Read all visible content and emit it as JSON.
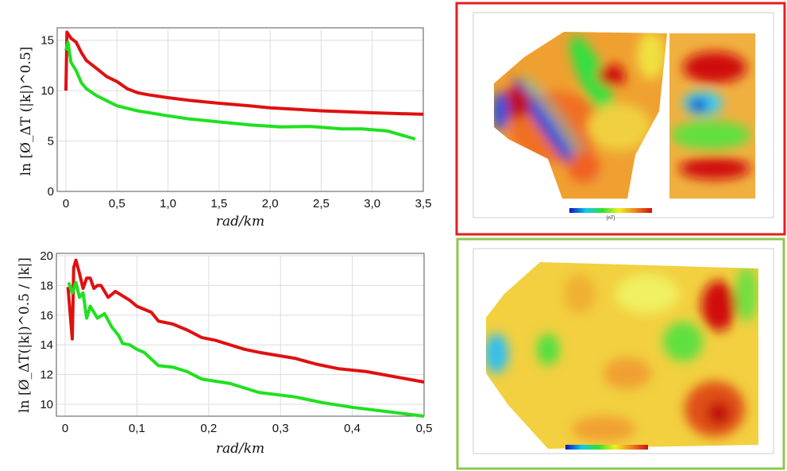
{
  "colors": {
    "series_red": "#e01010",
    "series_green": "#20e020",
    "panel_top_border": "#e02020",
    "panel_bottom_border": "#8cc850"
  },
  "chart_data": [
    {
      "type": "line",
      "xlabel": "rad/km",
      "ylabel": "ln [Ø_ΔT (|k|)^0.5]",
      "xlim": [
        0,
        3.5
      ],
      "ylim": [
        0,
        16
      ],
      "xticks": [
        "0",
        "0,5",
        "1,0",
        "1,5",
        "2,0",
        "2,5",
        "3,0",
        "3,5"
      ],
      "yticks": [
        "0",
        "5",
        "10",
        "15"
      ],
      "grid": true,
      "series": [
        {
          "color": "#e01010",
          "x": [
            0,
            0.01,
            0.05,
            0.1,
            0.15,
            0.2,
            0.3,
            0.4,
            0.5,
            0.6,
            0.7,
            0.8,
            1.0,
            1.2,
            1.5,
            1.8,
            2.0,
            2.5,
            3.0,
            3.5
          ],
          "y": [
            10,
            15.8,
            15.2,
            14.8,
            13.8,
            13,
            12.2,
            11.4,
            10.9,
            10.2,
            9.8,
            9.6,
            9.3,
            9.05,
            8.75,
            8.5,
            8.3,
            8.0,
            7.8,
            7.65
          ]
        },
        {
          "color": "#20e020",
          "x": [
            0,
            0.02,
            0.05,
            0.1,
            0.15,
            0.2,
            0.3,
            0.4,
            0.5,
            0.7,
            1.0,
            1.2,
            1.5,
            1.8,
            2.1,
            2.4,
            2.7,
            2.9,
            3.15,
            3.42
          ],
          "y": [
            14,
            14.8,
            12.8,
            12,
            10.8,
            10.2,
            9.5,
            9,
            8.5,
            8,
            7.5,
            7.2,
            6.9,
            6.6,
            6.4,
            6.45,
            6.2,
            6.2,
            6.0,
            5.2
          ]
        }
      ]
    },
    {
      "type": "line",
      "xlabel": "rad/km",
      "ylabel": "ln [Ø_ΔT(|k|)^0.5 / |k|]",
      "xlim": [
        0,
        0.5
      ],
      "ylim": [
        9.2,
        20
      ],
      "xticks": [
        "0",
        "0,1",
        "0,2",
        "0,3",
        "0,4",
        "0,5"
      ],
      "yticks": [
        "10",
        "12",
        "14",
        "16",
        "18",
        "20"
      ],
      "grid": true,
      "series": [
        {
          "color": "#e01010",
          "x": [
            0.004,
            0.01,
            0.012,
            0.015,
            0.02,
            0.025,
            0.03,
            0.035,
            0.04,
            0.045,
            0.05,
            0.06,
            0.07,
            0.09,
            0.1,
            0.12,
            0.13,
            0.15,
            0.17,
            0.19,
            0.21,
            0.25,
            0.27,
            0.32,
            0.35,
            0.38,
            0.42,
            0.5
          ],
          "y": [
            17.9,
            14.4,
            19.2,
            19.7,
            18.8,
            17.8,
            18.5,
            18.5,
            17.8,
            18,
            18,
            17.2,
            17.6,
            17,
            16.6,
            16.2,
            15.6,
            15.4,
            15,
            14.5,
            14.3,
            13.7,
            13.5,
            13.1,
            12.7,
            12.4,
            12.2,
            11.5
          ]
        },
        {
          "color": "#20e020",
          "x": [
            0.005,
            0.01,
            0.015,
            0.02,
            0.025,
            0.03,
            0.035,
            0.04,
            0.045,
            0.055,
            0.065,
            0.075,
            0.08,
            0.09,
            0.1,
            0.11,
            0.13,
            0.15,
            0.17,
            0.19,
            0.23,
            0.27,
            0.32,
            0.36,
            0.4,
            0.5
          ],
          "y": [
            18.2,
            17.5,
            18.2,
            17.2,
            17.5,
            15.8,
            16.6,
            16.2,
            15.8,
            16.1,
            15.2,
            14.6,
            14.1,
            14,
            13.7,
            13.5,
            12.6,
            12.5,
            12.2,
            11.7,
            11.4,
            10.8,
            10.5,
            10.1,
            9.8,
            9.2
          ]
        }
      ]
    }
  ],
  "maps": {
    "unit": "[nT]"
  }
}
